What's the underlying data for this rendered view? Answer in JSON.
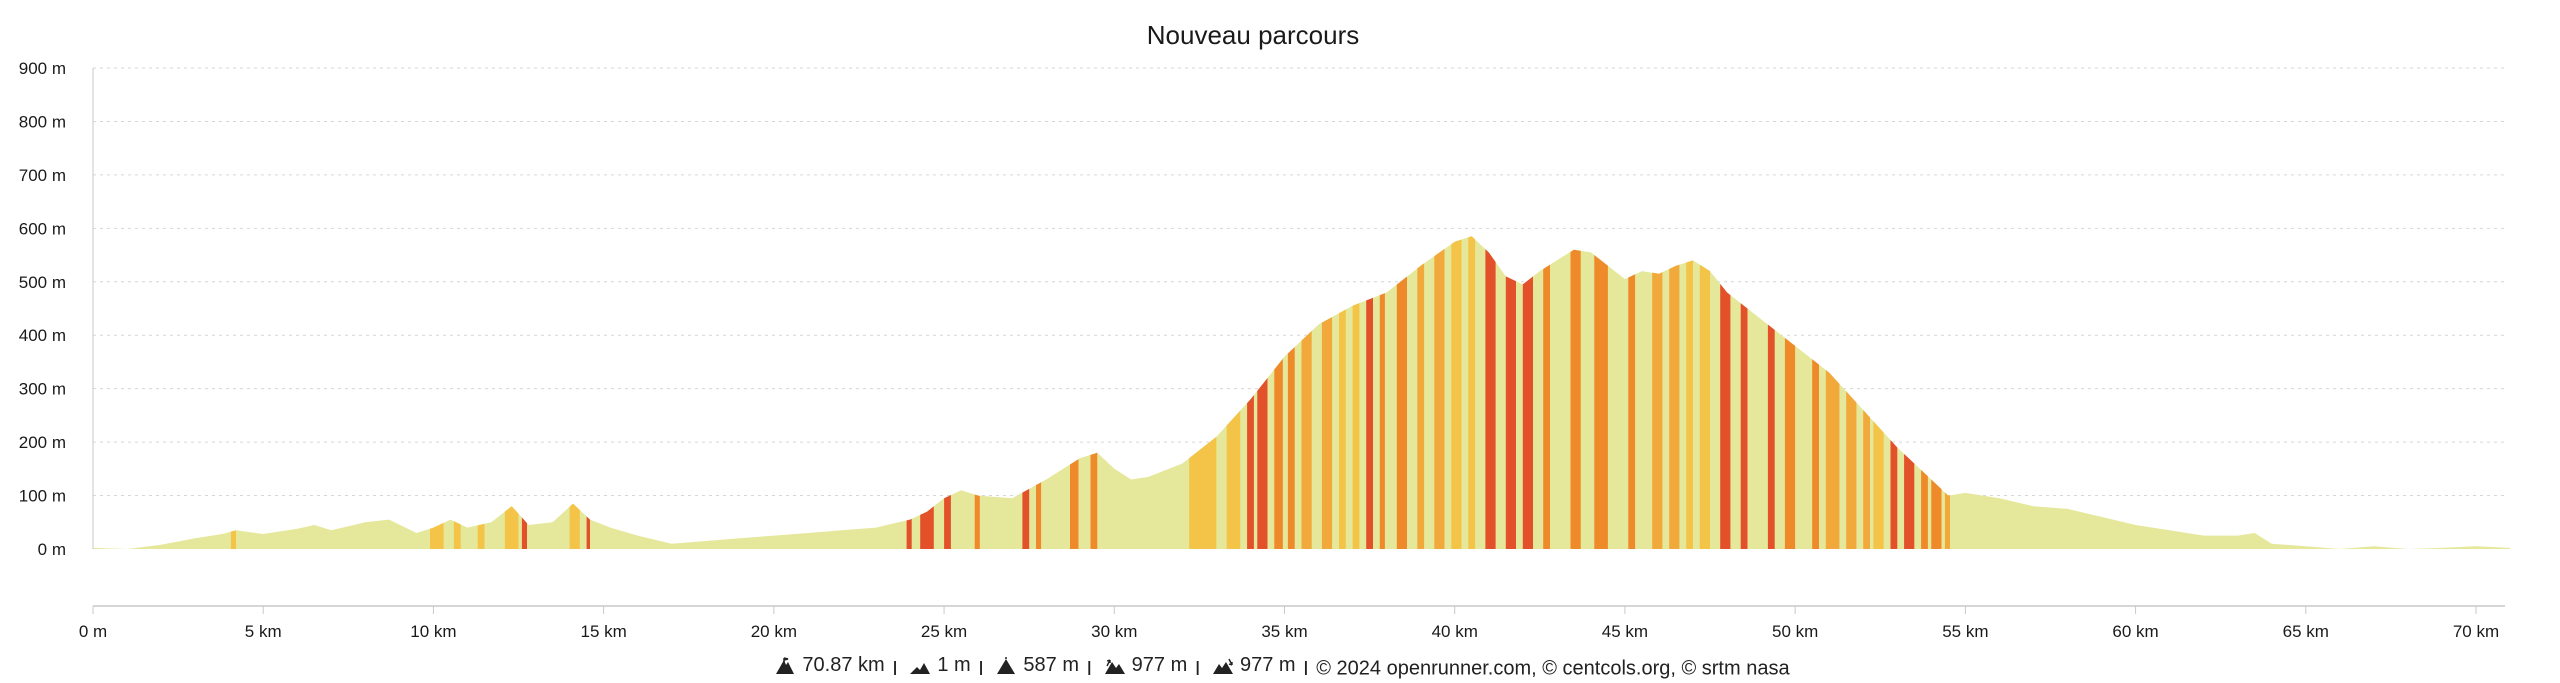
{
  "chart_data": {
    "type": "area",
    "title": "Nouveau parcours",
    "xlabel": "",
    "ylabel": "",
    "xlim": [
      0,
      71
    ],
    "ylim": [
      0,
      900
    ],
    "x_ticks": [
      "0 m",
      "5 km",
      "10 km",
      "15 km",
      "20 km",
      "25 km",
      "30 km",
      "35 km",
      "40 km",
      "45 km",
      "50 km",
      "55 km",
      "60 km",
      "65 km",
      "70 km"
    ],
    "y_ticks": [
      "0 m",
      "100 m",
      "200 m",
      "300 m",
      "400 m",
      "500 m",
      "600 m",
      "700 m",
      "800 m",
      "900 m"
    ],
    "grid": true,
    "x_km": [
      0,
      1,
      2,
      3,
      3.8,
      4.2,
      5,
      6,
      6.5,
      7,
      8,
      8.7,
      9.5,
      10,
      10.5,
      11,
      11.7,
      12.3,
      12.8,
      13.5,
      14.1,
      14.6,
      15.2,
      16,
      17,
      18,
      19,
      20,
      21,
      22,
      23,
      24,
      24.5,
      25,
      25.5,
      26,
      27,
      28,
      28.5,
      29,
      29.5,
      30,
      30.5,
      31,
      32,
      33,
      34,
      35,
      36,
      37,
      38,
      39,
      40,
      40.5,
      41,
      41.5,
      42,
      42.5,
      43,
      43.5,
      44,
      44.5,
      45,
      45.5,
      46,
      46.5,
      47,
      47.5,
      48,
      49,
      50,
      51,
      52,
      53,
      54,
      54.5,
      55,
      56,
      57,
      58,
      59,
      60,
      61,
      62,
      63,
      63.5,
      64,
      65,
      66,
      67,
      68,
      69,
      70,
      71
    ],
    "elevation_m": [
      2,
      0,
      8,
      20,
      28,
      35,
      28,
      38,
      45,
      35,
      50,
      55,
      30,
      40,
      55,
      40,
      50,
      80,
      45,
      50,
      85,
      55,
      40,
      25,
      10,
      15,
      20,
      25,
      30,
      35,
      40,
      55,
      70,
      95,
      110,
      100,
      95,
      130,
      150,
      170,
      180,
      150,
      130,
      135,
      160,
      210,
      280,
      360,
      420,
      455,
      480,
      530,
      575,
      585,
      555,
      510,
      495,
      520,
      540,
      560,
      555,
      530,
      505,
      520,
      515,
      530,
      540,
      520,
      480,
      430,
      380,
      330,
      260,
      190,
      130,
      100,
      105,
      95,
      80,
      75,
      60,
      45,
      35,
      25,
      25,
      30,
      10,
      5,
      0,
      5,
      0,
      2,
      5,
      2
    ],
    "slope_stripes_km": [
      [
        4.05,
        4.2
      ],
      [
        9.9,
        10.3
      ],
      [
        10.6,
        10.8
      ],
      [
        11.3,
        11.5
      ],
      [
        12.1,
        12.5
      ],
      [
        12.6,
        12.75
      ],
      [
        14.0,
        14.3
      ],
      [
        14.5,
        14.6
      ],
      [
        23.9,
        24.05
      ],
      [
        24.3,
        24.7
      ],
      [
        25.0,
        25.2
      ],
      [
        25.9,
        26.05
      ],
      [
        27.3,
        27.5
      ],
      [
        27.7,
        27.85
      ],
      [
        28.7,
        28.95
      ],
      [
        29.3,
        29.5
      ],
      [
        32.2,
        33.0
      ],
      [
        33.3,
        33.7
      ],
      [
        33.9,
        34.1
      ],
      [
        34.2,
        34.5
      ],
      [
        34.7,
        34.95
      ],
      [
        35.1,
        35.3
      ],
      [
        35.5,
        35.8
      ],
      [
        36.1,
        36.4
      ],
      [
        36.6,
        36.8
      ],
      [
        37.0,
        37.2
      ],
      [
        37.4,
        37.6
      ],
      [
        37.8,
        37.95
      ],
      [
        38.3,
        38.6
      ],
      [
        38.9,
        39.1
      ],
      [
        39.4,
        39.7
      ],
      [
        39.9,
        40.2
      ],
      [
        40.4,
        40.6
      ],
      [
        40.9,
        41.2
      ],
      [
        41.5,
        41.8
      ],
      [
        42.0,
        42.3
      ],
      [
        42.6,
        42.8
      ],
      [
        43.4,
        43.7
      ],
      [
        44.1,
        44.5
      ],
      [
        45.1,
        45.3
      ],
      [
        45.8,
        46.1
      ],
      [
        46.3,
        46.6
      ],
      [
        46.8,
        47.0
      ],
      [
        47.2,
        47.5
      ],
      [
        47.8,
        48.1
      ],
      [
        48.4,
        48.6
      ],
      [
        49.2,
        49.4
      ],
      [
        49.7,
        50.0
      ],
      [
        50.5,
        50.7
      ],
      [
        50.9,
        51.3
      ],
      [
        51.5,
        51.8
      ],
      [
        52.0,
        52.2
      ],
      [
        52.3,
        52.6
      ],
      [
        52.8,
        53.0
      ],
      [
        53.2,
        53.5
      ],
      [
        53.7,
        53.9
      ],
      [
        54.0,
        54.3
      ],
      [
        54.4,
        54.55
      ]
    ],
    "slope_colors": [
      "#f3c447",
      "#f2a93b",
      "#ee8a29",
      "#e2512a"
    ],
    "fill_color": "#e5e89a",
    "grid_color": "#d6d6d6",
    "axis_color": "#c8c8c8"
  },
  "footer": {
    "distance": "70.87 km",
    "min_altitude": "1 m",
    "max_altitude": "587 m",
    "elevation_gain": "977 m",
    "elevation_loss": "977 m",
    "credits": "© 2024 openrunner.com, © centcols.org, © srtm nasa",
    "separator": "I"
  },
  "icons": [
    "distance-icon",
    "min-altitude-icon",
    "max-altitude-icon",
    "elevation-gain-icon",
    "elevation-loss-icon"
  ]
}
